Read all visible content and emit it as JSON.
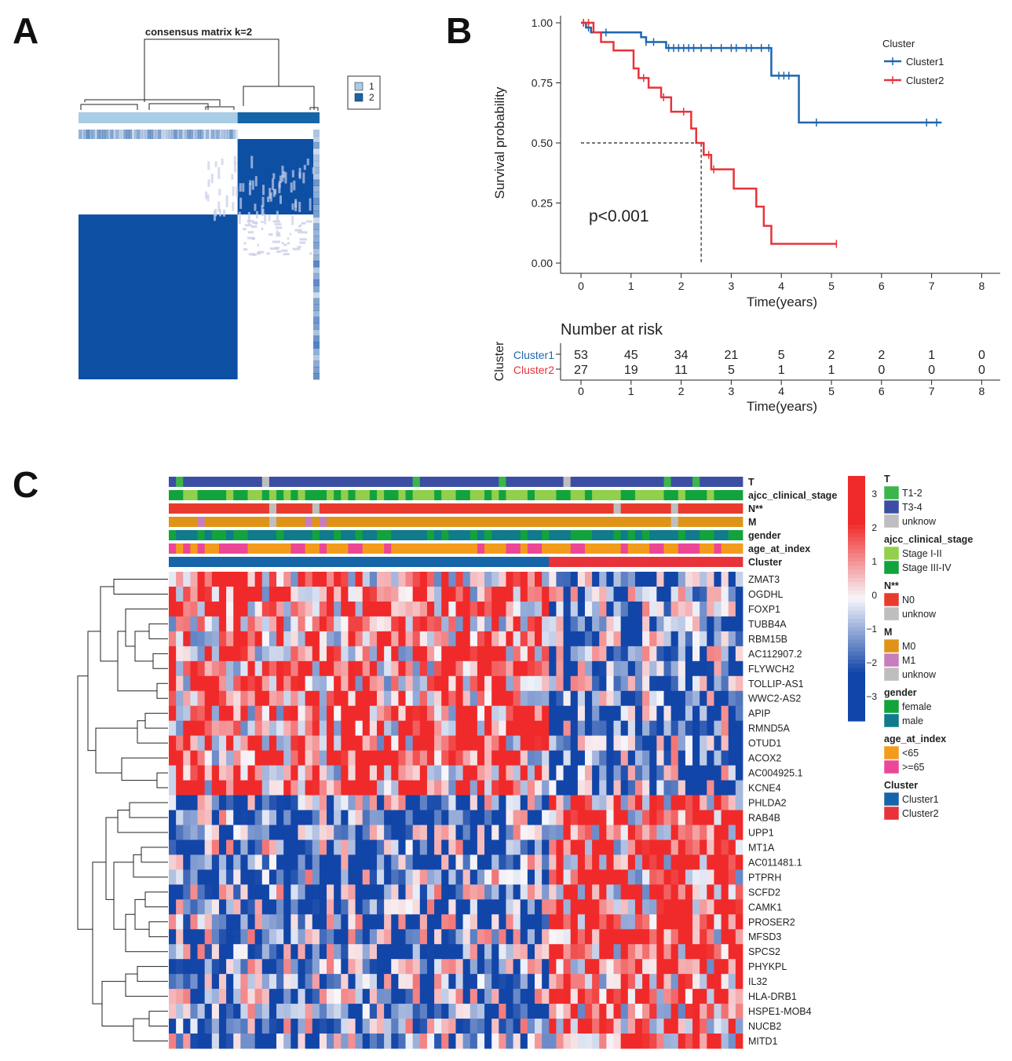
{
  "panels": {
    "a": "A",
    "b": "B",
    "c": "C"
  },
  "colors": {
    "blue_dark": "#0d4fa3",
    "blue_light": "#a8cde6",
    "blue_cluster2": "#1565a8",
    "km_blue": "#1f66ad",
    "km_red": "#e8333a",
    "heat_red": "#f02a2a",
    "heat_white": "#f7f7fb",
    "heat_blue": "#1245a8",
    "T12": "#3cb54a",
    "T34": "#3b4ea3",
    "unknow": "#bebebe",
    "stageI": "#92cf4d",
    "stageIII": "#12a33d",
    "N0": "#e83b2e",
    "M0": "#df9318",
    "M1": "#c77ebc",
    "female": "#12a33d",
    "male": "#117a8b",
    "lt65": "#f39c1c",
    "ge65": "#ec4797",
    "cluster1": "#1565a8",
    "cluster2": "#e8333a"
  },
  "chart_data": [
    {
      "type": "heatmap",
      "title": "consensus matrix k=2",
      "legend": [
        {
          "label": "1",
          "color": "#a8cde6"
        },
        {
          "label": "2",
          "color": "#1565a8"
        }
      ],
      "groups": [
        {
          "name": "1",
          "fraction": 0.66
        },
        {
          "name": "2",
          "fraction": 0.34
        }
      ]
    },
    {
      "type": "line",
      "title": "",
      "xlabel": "Time(years)",
      "ylabel": "Survival probability",
      "xlim": [
        0,
        8
      ],
      "ylim": [
        0,
        1
      ],
      "x_ticks": [
        "0",
        "1",
        "2",
        "3",
        "4",
        "5",
        "6",
        "7",
        "8"
      ],
      "y_ticks": [
        "0.00",
        "0.25",
        "0.50",
        "0.75",
        "1.00"
      ],
      "legend_title": "Cluster",
      "annotation": "p<0.001",
      "median_line": {
        "x": 2.4,
        "y": 0.5
      },
      "series": [
        {
          "name": "Cluster1",
          "color": "#1f66ad",
          "steps": [
            [
              0,
              1.0
            ],
            [
              0.1,
              0.98
            ],
            [
              0.2,
              0.96
            ],
            [
              0.3,
              0.96
            ],
            [
              1.2,
              0.94
            ],
            [
              1.3,
              0.92
            ],
            [
              1.7,
              0.895
            ],
            [
              3.8,
              0.78
            ],
            [
              4.35,
              0.585
            ],
            [
              7.2,
              0.585
            ]
          ],
          "censor": [
            0.05,
            0.15,
            0.5,
            1.3,
            1.45,
            1.75,
            1.85,
            1.95,
            2.05,
            2.15,
            2.25,
            2.4,
            2.6,
            2.8,
            3.0,
            3.1,
            3.3,
            3.4,
            3.6,
            3.75,
            3.95,
            4.05,
            4.15,
            4.7,
            6.9,
            7.1
          ]
        },
        {
          "name": "Cluster2",
          "color": "#e8333a",
          "steps": [
            [
              0,
              1.0
            ],
            [
              0.25,
              0.96
            ],
            [
              0.4,
              0.92
            ],
            [
              0.65,
              0.885
            ],
            [
              1.05,
              0.81
            ],
            [
              1.15,
              0.77
            ],
            [
              1.35,
              0.73
            ],
            [
              1.6,
              0.69
            ],
            [
              1.8,
              0.63
            ],
            [
              2.2,
              0.56
            ],
            [
              2.3,
              0.5
            ],
            [
              2.45,
              0.45
            ],
            [
              2.6,
              0.39
            ],
            [
              3.05,
              0.31
            ],
            [
              3.5,
              0.235
            ],
            [
              3.65,
              0.155
            ],
            [
              3.8,
              0.08
            ],
            [
              5.1,
              0.08
            ]
          ],
          "censor": [
            0.05,
            0.15,
            1.25,
            1.65,
            2.05,
            2.55,
            2.65,
            5.1
          ]
        }
      ],
      "risk_table": {
        "title": "Number at risk",
        "ylabel": "Cluster",
        "xlabel": "Time(years)",
        "rows": [
          {
            "name": "Cluster1",
            "values": [
              "53",
              "45",
              "34",
              "21",
              "5",
              "2",
              "2",
              "1",
              "0"
            ]
          },
          {
            "name": "Cluster2",
            "values": [
              "27",
              "19",
              "11",
              "5",
              "1",
              "1",
              "0",
              "0",
              "0"
            ]
          }
        ]
      }
    },
    {
      "type": "heatmap",
      "genes": [
        "ZMAT3",
        "OGDHL",
        "FOXP1",
        "TUBB4A",
        "RBM15B",
        "AC112907.2",
        "FLYWCH2",
        "TOLLIP-AS1",
        "WWC2-AS2",
        "APIP",
        "RMND5A",
        "OTUD1",
        "ACOX2",
        "AC004925.1",
        "KCNE4",
        "PHLDA2",
        "RAB4B",
        "UPP1",
        "MT1A",
        "AC011481.1",
        "PTPRH",
        "SCFD2",
        "CAMK1",
        "PROSER2",
        "MFSD3",
        "SPCS2",
        "PHYKPL",
        "IL32",
        "HLA-DRB1",
        "HSPE1-MOB4",
        "NUCB2",
        "MITD1"
      ],
      "annotation_rows": [
        "T",
        "ajcc_clinical_stage",
        "N**",
        "M",
        "gender",
        "age_at_index",
        "Cluster"
      ],
      "n_samples": 80,
      "cluster_split": {
        "Cluster1": 53,
        "Cluster2": 27
      },
      "colorbar_ticks": [
        "3",
        "2",
        "1",
        "0",
        "-1",
        "-2",
        "-3"
      ],
      "colorbar_range": [
        -3,
        3
      ],
      "legend": [
        {
          "title": "T",
          "items": [
            "T1-2",
            "T3-4",
            "unknow"
          ]
        },
        {
          "title": "ajcc_clinical_stage",
          "items": [
            "Stage I-II",
            "Stage III-IV"
          ]
        },
        {
          "title": "N**",
          "items": [
            "N0",
            "unknow"
          ]
        },
        {
          "title": "M",
          "items": [
            "M0",
            "M1",
            "unknow"
          ]
        },
        {
          "title": "gender",
          "items": [
            "female",
            "male"
          ]
        },
        {
          "title": "age_at_index",
          "items": [
            "<65",
            ">=65"
          ]
        },
        {
          "title": "Cluster",
          "items": [
            "Cluster1",
            "Cluster2"
          ]
        }
      ]
    }
  ]
}
